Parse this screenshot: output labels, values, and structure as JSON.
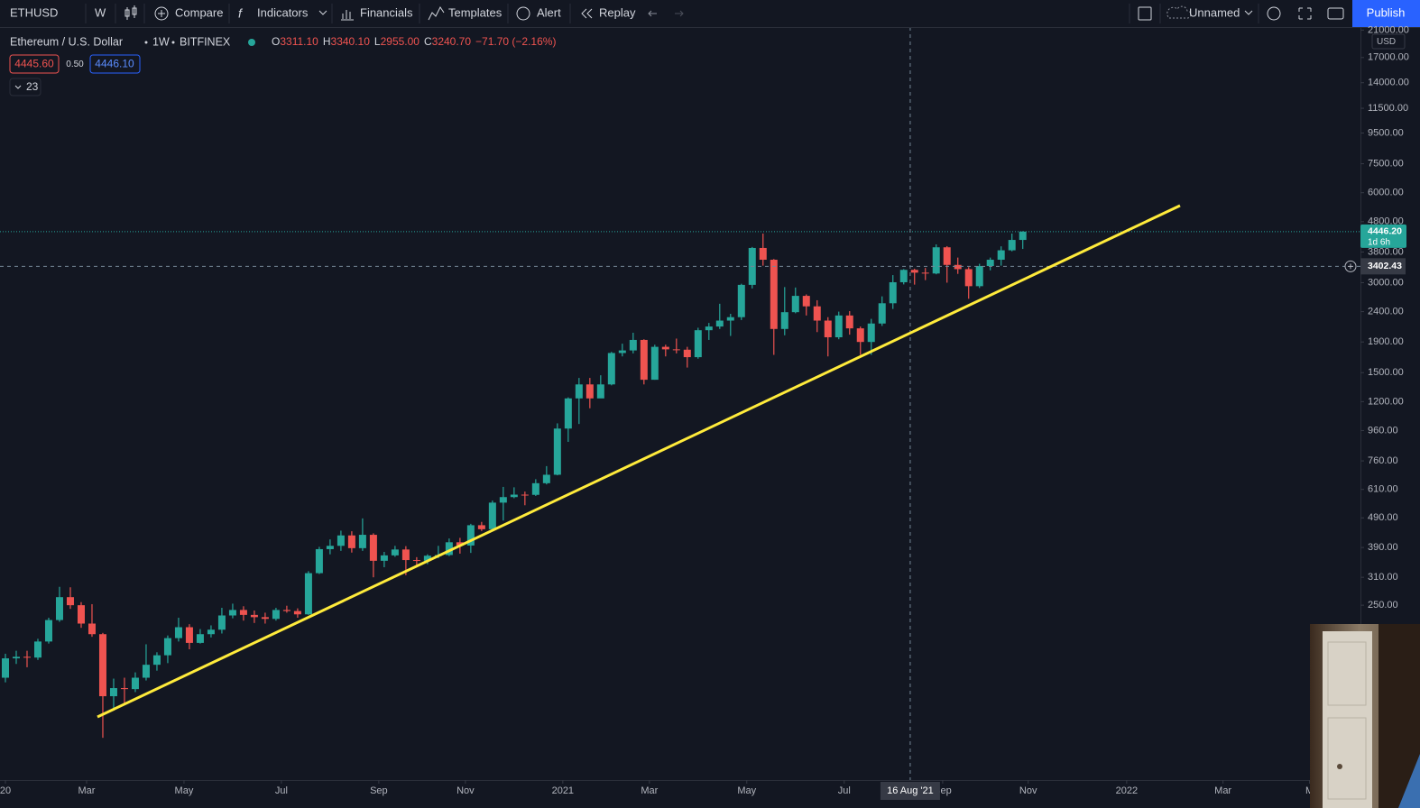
{
  "toolbar": {
    "symbol": "ETHUSD",
    "interval": "W",
    "compare": "Compare",
    "indicators": "Indicators",
    "financials": "Financials",
    "templates": "Templates",
    "alert": "Alert",
    "replay": "Replay",
    "layout_name": "Unnamed",
    "publish": "Publish"
  },
  "legend": {
    "title": "Ethereum / U.S. Dollar",
    "interval": "1W",
    "exchange": "BITFINEX",
    "ohlc": [
      {
        "key": "O",
        "value": "3311.10"
      },
      {
        "key": "H",
        "value": "3340.10"
      },
      {
        "key": "L",
        "value": "2955.00"
      },
      {
        "key": "C",
        "value": "3240.70"
      }
    ],
    "change": "−71.70 (−2.16%)",
    "bid": "4445.60",
    "spread": "0.50",
    "ask": "4446.10",
    "indicator_count": "23"
  },
  "chart_data": {
    "type": "candlestick",
    "scale": "log",
    "currency": "USD",
    "up_color": "#26a69a",
    "down_color": "#ef5350",
    "xlim": [
      -0.5,
      125.2
    ],
    "xticks": [
      {
        "value": 0,
        "label": "20"
      },
      {
        "value": 7.5,
        "label": "Mar"
      },
      {
        "value": 16.5,
        "label": "May"
      },
      {
        "value": 25.5,
        "label": "Jul"
      },
      {
        "value": 34.5,
        "label": "Sep"
      },
      {
        "value": 42.5,
        "label": "Nov"
      },
      {
        "value": 51.5,
        "label": "2021"
      },
      {
        "value": 59.5,
        "label": "Mar"
      },
      {
        "value": 68.5,
        "label": "May"
      },
      {
        "value": 77.5,
        "label": "Jul"
      },
      {
        "value": 86.6,
        "label": "Sep"
      },
      {
        "value": 94.5,
        "label": "Nov"
      },
      {
        "value": 103.6,
        "label": "2022"
      },
      {
        "value": 112.5,
        "label": "Mar"
      },
      {
        "value": 120.5,
        "label": "M"
      }
    ],
    "ylim": [
      65,
      21500
    ],
    "yticks": [
      {
        "value": 250,
        "label": "250.00"
      },
      {
        "value": 310,
        "label": "310.00"
      },
      {
        "value": 390,
        "label": "390.00"
      },
      {
        "value": 490,
        "label": "490.00"
      },
      {
        "value": 610,
        "label": "610.00"
      },
      {
        "value": 760,
        "label": "760.00"
      },
      {
        "value": 960,
        "label": "960.00"
      },
      {
        "value": 1200,
        "label": "1200.00"
      },
      {
        "value": 1500,
        "label": "1500.00"
      },
      {
        "value": 1900,
        "label": "1900.00"
      },
      {
        "value": 2400,
        "label": "2400.00"
      },
      {
        "value": 3000,
        "label": "3000.00"
      },
      {
        "value": 3800,
        "label": "3800.00"
      },
      {
        "value": 4800,
        "label": "4800.00"
      },
      {
        "value": 6000,
        "label": "6000.00"
      },
      {
        "value": 7500,
        "label": "7500.00"
      },
      {
        "value": 9500,
        "label": "9500.00"
      },
      {
        "value": 11500,
        "label": "11500.00"
      },
      {
        "value": 14000,
        "label": "14000.00"
      },
      {
        "value": 17000,
        "label": "17000.00"
      },
      {
        "value": 21000,
        "label": "21000.00"
      }
    ],
    "open": [
      143,
      166,
      168,
      167,
      189,
      223,
      266,
      250,
      217,
      200,
      124,
      132,
      131,
      143,
      158,
      170,
      194,
      211,
      187,
      200,
      207,
      231,
      241,
      232,
      228,
      225,
      241,
      239,
      233,
      320,
      385,
      395,
      428,
      388,
      430,
      352,
      367,
      384,
      354,
      352,
      366,
      368,
      406,
      396,
      463,
      449,
      551,
      575,
      586,
      585,
      640,
      683,
      975,
      1230,
      1370,
      1230,
      1370,
      1745,
      1780,
      1930,
      1420,
      1830,
      1795,
      1790,
      1690,
      2080,
      2140,
      2240,
      2300,
      2950,
      3920,
      3580,
      2100,
      2390,
      2710,
      2500,
      2240,
      1970,
      2330,
      2110,
      1900,
      2190,
      2560,
      3010,
      3311.1,
      3240.7,
      3220,
      3940,
      3440,
      3330,
      2920,
      3410,
      3580,
      3850,
      4170
    ],
    "high": [
      172,
      176,
      176,
      193,
      227,
      288,
      287,
      256,
      252,
      202,
      142,
      143,
      149,
      185,
      174,
      198,
      227,
      216,
      208,
      214,
      245,
      253,
      248,
      240,
      236,
      245,
      249,
      244,
      325,
      392,
      415,
      444,
      442,
      488,
      435,
      377,
      395,
      394,
      362,
      370,
      395,
      418,
      420,
      468,
      475,
      560,
      622,
      620,
      600,
      660,
      730,
      1015,
      1240,
      1440,
      1440,
      1470,
      1760,
      1875,
      2040,
      1940,
      1860,
      1860,
      1950,
      1830,
      2120,
      2200,
      2550,
      2360,
      2975,
      3950,
      4380,
      3600,
      2900,
      2890,
      2740,
      2620,
      2300,
      2400,
      2410,
      2140,
      2270,
      2700,
      3180,
      3330,
      3340.1,
      3360,
      4030,
      3975,
      3640,
      3380,
      3470,
      3640,
      3970,
      4380,
      4460
    ],
    "low": [
      138,
      159,
      155,
      164,
      186,
      220,
      243,
      210,
      196,
      90,
      111,
      117,
      128,
      140,
      151,
      160,
      189,
      178,
      186,
      195,
      201,
      226,
      222,
      218,
      217,
      222,
      236,
      227,
      232,
      318,
      370,
      380,
      375,
      380,
      310,
      335,
      363,
      315,
      338,
      343,
      359,
      365,
      372,
      374,
      443,
      446,
      480,
      570,
      540,
      580,
      634,
      680,
      880,
      1010,
      1140,
      1270,
      1360,
      1700,
      1740,
      1370,
      1420,
      1700,
      1740,
      1560,
      1670,
      1930,
      2100,
      1990,
      2250,
      2870,
      3420,
      1720,
      2000,
      2370,
      2330,
      2050,
      1700,
      1940,
      2010,
      1720,
      1720,
      2150,
      2450,
      2960,
      2955,
      3060,
      3200,
      3000,
      3210,
      2650,
      2880,
      3300,
      3420,
      3820,
      3890
    ],
    "close": [
      166,
      168,
      167,
      189,
      223,
      266,
      250,
      217,
      200,
      124,
      132,
      131,
      143,
      158,
      170,
      194,
      211,
      187,
      200,
      207,
      231,
      241,
      232,
      228,
      225,
      241,
      239,
      233,
      320,
      385,
      395,
      428,
      388,
      430,
      352,
      367,
      384,
      354,
      352,
      366,
      368,
      406,
      396,
      463,
      449,
      551,
      575,
      586,
      585,
      640,
      683,
      975,
      1230,
      1370,
      1230,
      1370,
      1745,
      1780,
      1930,
      1420,
      1830,
      1795,
      1790,
      1690,
      2080,
      2140,
      2240,
      2300,
      2950,
      3920,
      3580,
      2100,
      2390,
      2710,
      2500,
      2240,
      1970,
      2330,
      2110,
      1900,
      2190,
      2560,
      3010,
      3311.1,
      3240.7,
      3220,
      3940,
      3440,
      3330,
      2920,
      3410,
      3580,
      3850,
      4170,
      4446.2
    ],
    "last_price": {
      "value": 4446.2,
      "label": "4446.20"
    },
    "countdown": "1d 6h",
    "crosshair": {
      "x": 83.6,
      "price": 3402.43,
      "date_label": "16 Aug '21"
    }
  }
}
